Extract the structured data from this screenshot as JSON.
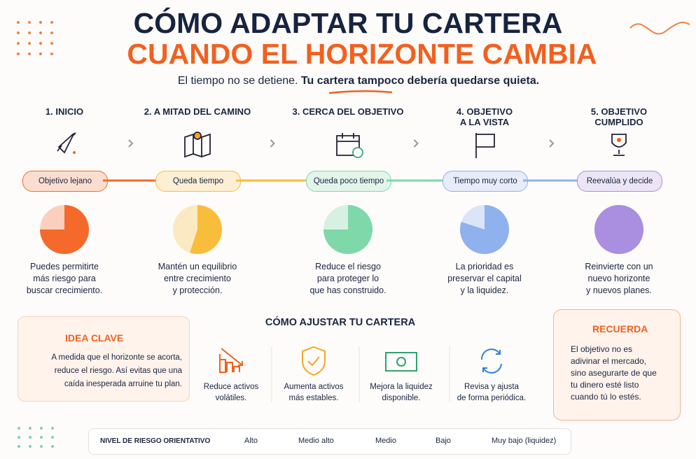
{
  "header": {
    "title_line1": "CÓMO ADAPTAR TU CARTERA",
    "title_line2": "CUANDO EL HORIZONTE CAMBIA",
    "subtitle_plain": "El tiempo no se detiene.",
    "subtitle_bold": "Tu cartera tampoco debería quedarse quieta."
  },
  "stages": [
    {
      "heading": "1. INICIO",
      "label": "Objetivo lejano",
      "share": 75,
      "color": "#f56a2a",
      "text": "Puedes permitirte\nmás riesgo para\nbuscar crecimiento."
    },
    {
      "heading": "2. A MITAD DEL CAMINO",
      "label": "Queda tiempo",
      "share": 55,
      "color": "#f9bd3c",
      "text": "Mantén un equilibrio\nentre crecimiento\ny protección."
    },
    {
      "heading": "3. CERCA DEL OBJETIVO",
      "label": "Queda poco tiempo",
      "share": 75,
      "color": "#7ed8aa",
      "text": "Reduce el riesgo\npara proteger lo\nque has construido."
    },
    {
      "heading": "4. OBJETIVO\nA LA VISTA",
      "label": "Tiempo muy corto",
      "share": 80,
      "color": "#8fb1ee",
      "text": "La prioridad es\npreservar el capital\ny la liquidez."
    },
    {
      "heading": "5. OBJETIVO\nCUMPLIDO",
      "label": "Reevalúa y decide",
      "share": 100,
      "color": "#aa8ee0",
      "text": "Reinvierte con un\nnuevo horizonte\ny nuevos planes."
    }
  ],
  "key_idea": {
    "title": "IDEA CLAVE",
    "text": "A medida que el horizonte se acorta,\nreduce el riesgo. Así evitas que una\ncaída inesperada arruine tu plan."
  },
  "actions": {
    "title": "CÓMO AJUSTAR TU CARTERA",
    "items": [
      "Reduce activos\nvolátiles.",
      "Aumenta activos\nmás estables.",
      "Mejora la liquidez\ndisponible.",
      "Revisa y ajusta\nde forma periódica."
    ]
  },
  "remember": {
    "title": "RECUERDA",
    "text": "El objetivo no es\nadivinar el mercado,\nsino asegurarte de que\ntu dinero esté listo\ncuando tú lo estés."
  },
  "legend": {
    "title": "NIVEL DE RIESGO ORIENTATIVO",
    "items": [
      {
        "label": "Alto",
        "color": "#f56a2a"
      },
      {
        "label": "Medio alto",
        "color": "#f9bd3c"
      },
      {
        "label": "Medio",
        "color": "#7ed8aa"
      },
      {
        "label": "Bajo",
        "color": "#8fb1ee"
      },
      {
        "label": "Muy bajo (liquidez)",
        "color": "#aa8ee0"
      }
    ]
  }
}
